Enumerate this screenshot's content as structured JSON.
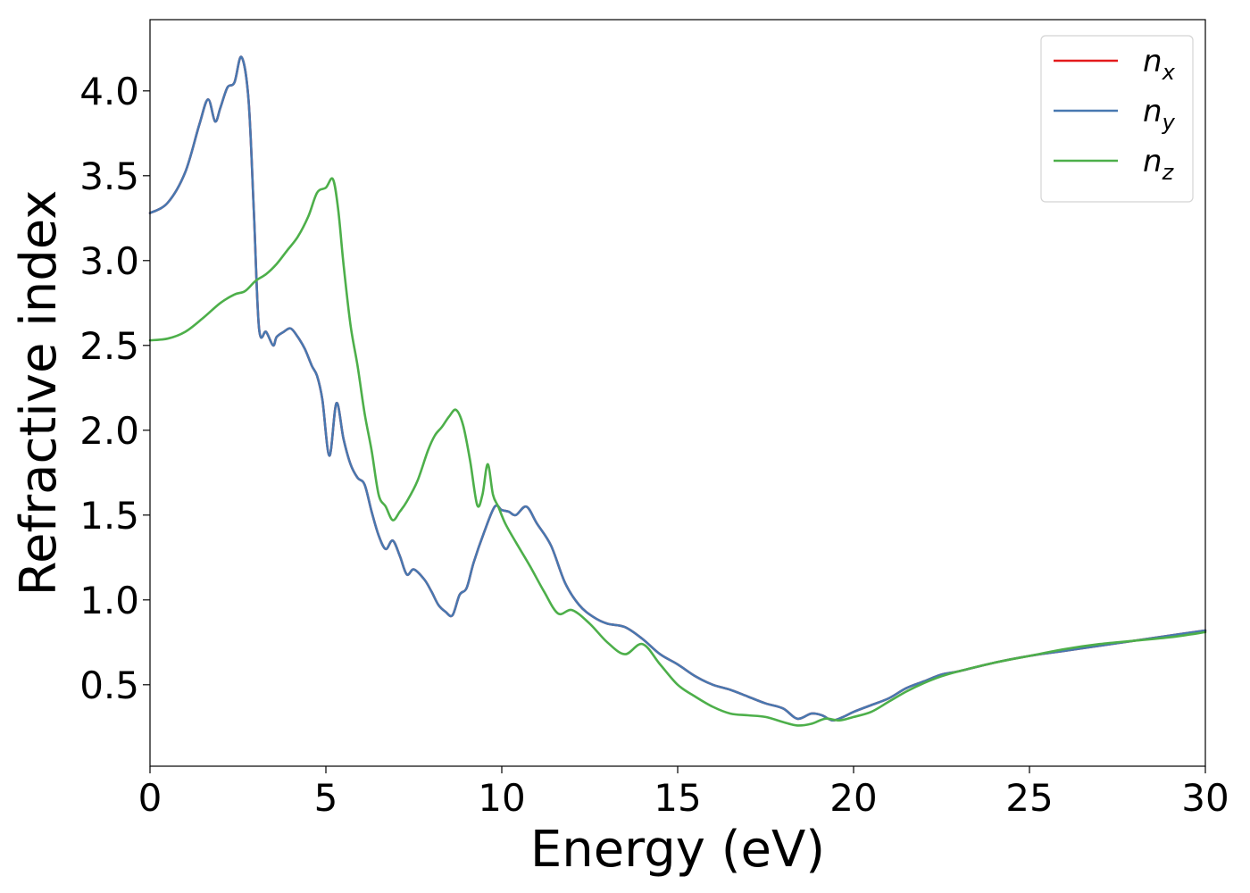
{
  "chart_data": {
    "type": "line",
    "xlabel": "Energy (eV)",
    "ylabel": "Refractive index",
    "xlim": [
      0,
      30
    ],
    "ylim": [
      0.02,
      4.42
    ],
    "xticks": [
      "0",
      "5",
      "10",
      "15",
      "20",
      "25",
      "30"
    ],
    "yticks": [
      "0.5",
      "1.0",
      "1.5",
      "2.0",
      "2.5",
      "3.0",
      "3.5",
      "4.0"
    ],
    "grid": false,
    "legend_position": "top-right",
    "series": [
      {
        "name": "n_x",
        "color": "#e41a1c",
        "x": [
          0,
          0.5,
          1,
          1.4,
          1.65,
          1.85,
          2.0,
          2.2,
          2.4,
          2.6,
          2.8,
          2.95,
          3.1,
          3.3,
          3.5,
          3.6,
          3.8,
          4.0,
          4.2,
          4.4,
          4.6,
          4.75,
          4.9,
          5.1,
          5.3,
          5.5,
          5.7,
          5.9,
          6.1,
          6.3,
          6.5,
          6.7,
          6.9,
          7.1,
          7.3,
          7.5,
          7.8,
          8.0,
          8.2,
          8.4,
          8.6,
          8.8,
          9.0,
          9.2,
          9.5,
          9.8,
          10.0,
          10.2,
          10.4,
          10.7,
          11.0,
          11.4,
          11.8,
          12.2,
          12.6,
          13.0,
          13.5,
          14.0,
          14.5,
          15.0,
          15.5,
          16.0,
          16.5,
          17.0,
          17.5,
          18.0,
          18.4,
          18.8,
          19.1,
          19.4,
          19.7,
          20.0,
          20.5,
          21.0,
          21.5,
          22.0,
          22.5,
          23.0,
          24.0,
          25.0,
          26.0,
          27.0,
          28.0,
          29.0,
          30.0
        ],
        "y": [
          3.28,
          3.34,
          3.52,
          3.8,
          3.95,
          3.82,
          3.9,
          4.02,
          4.05,
          4.2,
          3.95,
          3.3,
          2.6,
          2.58,
          2.5,
          2.55,
          2.58,
          2.6,
          2.55,
          2.48,
          2.38,
          2.32,
          2.18,
          1.85,
          2.16,
          1.95,
          1.8,
          1.72,
          1.68,
          1.52,
          1.38,
          1.3,
          1.35,
          1.26,
          1.15,
          1.18,
          1.12,
          1.05,
          0.97,
          0.93,
          0.91,
          1.03,
          1.07,
          1.22,
          1.4,
          1.55,
          1.53,
          1.52,
          1.5,
          1.55,
          1.45,
          1.32,
          1.1,
          0.97,
          0.9,
          0.86,
          0.84,
          0.77,
          0.68,
          0.62,
          0.55,
          0.5,
          0.47,
          0.43,
          0.39,
          0.36,
          0.3,
          0.33,
          0.32,
          0.29,
          0.31,
          0.34,
          0.38,
          0.42,
          0.48,
          0.52,
          0.56,
          0.58,
          0.63,
          0.67,
          0.7,
          0.73,
          0.76,
          0.79,
          0.82
        ]
      },
      {
        "name": "n_y",
        "color": "#4878b0",
        "x": [
          0,
          0.5,
          1,
          1.4,
          1.65,
          1.85,
          2.0,
          2.2,
          2.4,
          2.6,
          2.8,
          2.95,
          3.1,
          3.3,
          3.5,
          3.6,
          3.8,
          4.0,
          4.2,
          4.4,
          4.6,
          4.75,
          4.9,
          5.1,
          5.3,
          5.5,
          5.7,
          5.9,
          6.1,
          6.3,
          6.5,
          6.7,
          6.9,
          7.1,
          7.3,
          7.5,
          7.8,
          8.0,
          8.2,
          8.4,
          8.6,
          8.8,
          9.0,
          9.2,
          9.5,
          9.8,
          10.0,
          10.2,
          10.4,
          10.7,
          11.0,
          11.4,
          11.8,
          12.2,
          12.6,
          13.0,
          13.5,
          14.0,
          14.5,
          15.0,
          15.5,
          16.0,
          16.5,
          17.0,
          17.5,
          18.0,
          18.4,
          18.8,
          19.1,
          19.4,
          19.7,
          20.0,
          20.5,
          21.0,
          21.5,
          22.0,
          22.5,
          23.0,
          24.0,
          25.0,
          26.0,
          27.0,
          28.0,
          29.0,
          30.0
        ],
        "y": [
          3.28,
          3.34,
          3.52,
          3.8,
          3.95,
          3.82,
          3.9,
          4.02,
          4.05,
          4.2,
          3.95,
          3.3,
          2.6,
          2.58,
          2.5,
          2.55,
          2.58,
          2.6,
          2.55,
          2.48,
          2.38,
          2.32,
          2.18,
          1.85,
          2.16,
          1.95,
          1.8,
          1.72,
          1.68,
          1.52,
          1.38,
          1.3,
          1.35,
          1.26,
          1.15,
          1.18,
          1.12,
          1.05,
          0.97,
          0.93,
          0.91,
          1.03,
          1.07,
          1.22,
          1.4,
          1.55,
          1.53,
          1.52,
          1.5,
          1.55,
          1.45,
          1.32,
          1.1,
          0.97,
          0.9,
          0.86,
          0.84,
          0.77,
          0.68,
          0.62,
          0.55,
          0.5,
          0.47,
          0.43,
          0.39,
          0.36,
          0.3,
          0.33,
          0.32,
          0.29,
          0.31,
          0.34,
          0.38,
          0.42,
          0.48,
          0.52,
          0.56,
          0.58,
          0.63,
          0.67,
          0.7,
          0.73,
          0.76,
          0.79,
          0.82
        ]
      },
      {
        "name": "n_z",
        "color": "#4daf4a",
        "x": [
          0,
          0.5,
          1,
          1.5,
          2.0,
          2.4,
          2.7,
          3.0,
          3.3,
          3.6,
          3.9,
          4.2,
          4.5,
          4.75,
          5.0,
          5.2,
          5.35,
          5.5,
          5.7,
          5.9,
          6.1,
          6.3,
          6.5,
          6.7,
          6.9,
          7.1,
          7.3,
          7.6,
          7.9,
          8.1,
          8.3,
          8.5,
          8.7,
          8.9,
          9.1,
          9.3,
          9.45,
          9.6,
          9.75,
          9.9,
          10.1,
          10.4,
          10.8,
          11.2,
          11.6,
          12.0,
          12.5,
          13.0,
          13.5,
          14.0,
          14.5,
          15.0,
          15.5,
          16.0,
          16.5,
          17.0,
          17.5,
          18.0,
          18.4,
          18.8,
          19.2,
          19.6,
          20.0,
          20.5,
          21.0,
          21.5,
          22.0,
          22.5,
          23.0,
          24.0,
          25.0,
          26.0,
          27.0,
          28.0,
          29.0,
          30.0
        ],
        "y": [
          2.53,
          2.54,
          2.58,
          2.66,
          2.75,
          2.8,
          2.82,
          2.88,
          2.92,
          2.98,
          3.06,
          3.14,
          3.26,
          3.4,
          3.43,
          3.48,
          3.3,
          2.98,
          2.62,
          2.38,
          2.1,
          1.88,
          1.62,
          1.55,
          1.47,
          1.52,
          1.58,
          1.7,
          1.88,
          1.97,
          2.02,
          2.08,
          2.12,
          2.03,
          1.82,
          1.56,
          1.62,
          1.8,
          1.62,
          1.55,
          1.45,
          1.34,
          1.2,
          1.05,
          0.92,
          0.94,
          0.86,
          0.75,
          0.68,
          0.74,
          0.62,
          0.5,
          0.43,
          0.37,
          0.33,
          0.32,
          0.31,
          0.28,
          0.26,
          0.27,
          0.3,
          0.29,
          0.31,
          0.34,
          0.4,
          0.46,
          0.51,
          0.55,
          0.58,
          0.63,
          0.67,
          0.71,
          0.74,
          0.76,
          0.78,
          0.81
        ]
      }
    ]
  }
}
